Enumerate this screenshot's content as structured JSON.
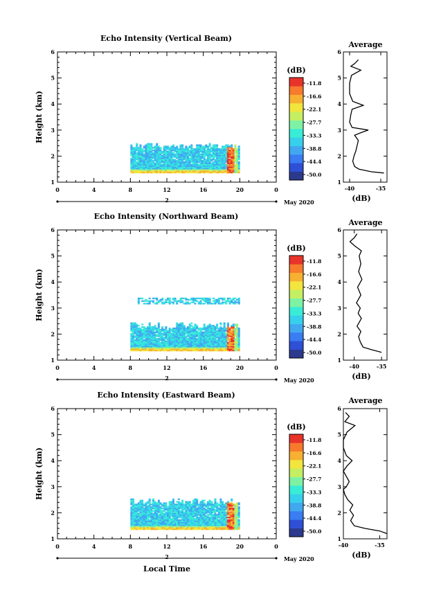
{
  "xlabel": "Local Time",
  "panels": [
    {
      "title": "Echo Intensity (Vertical Beam)",
      "ylabel": "Height (km)",
      "yticks": [
        "1",
        "2",
        "3",
        "4",
        "5",
        "6"
      ],
      "xticks": [
        "0",
        "4",
        "8",
        "12",
        "16",
        "20",
        "0"
      ],
      "day": "2",
      "month_label": "May 2020",
      "legend_unit": "(dB)",
      "legend_labels": [
        "-11.8",
        "-16.6",
        "-22.1",
        "-27.7",
        "-33.3",
        "-38.8",
        "-44.4",
        "-50.0"
      ],
      "avg_title": "Average",
      "avg_xlabel": "(dB)",
      "avg_xticks": [
        "-40",
        "-35"
      ],
      "avg_yticks": [
        "1",
        "2",
        "3",
        "4",
        "5",
        "6"
      ]
    },
    {
      "title": "Echo Intensity (Northward Beam)",
      "ylabel": "Height (km)",
      "yticks": [
        "1",
        "2",
        "3",
        "4",
        "5",
        "6"
      ],
      "xticks": [
        "0",
        "4",
        "8",
        "12",
        "16",
        "20",
        "0"
      ],
      "day": "2",
      "month_label": "May 2020",
      "legend_unit": "(dB)",
      "legend_labels": [
        "-11.8",
        "-16.6",
        "-22.1",
        "-27.7",
        "-33.3",
        "-38.8",
        "-44.4",
        "-50.0"
      ],
      "avg_title": "Average",
      "avg_xlabel": "(dB)",
      "avg_xticks": [
        "-40",
        "-35"
      ],
      "avg_yticks": [
        "1",
        "2",
        "3",
        "4",
        "5",
        "6"
      ]
    },
    {
      "title": "Echo Intensity (Eastward Beam)",
      "ylabel": "Height (km)",
      "yticks": [
        "1",
        "2",
        "3",
        "4",
        "5",
        "6"
      ],
      "xticks": [
        "0",
        "4",
        "8",
        "12",
        "16",
        "20",
        "0"
      ],
      "day": "2",
      "month_label": "May 2020",
      "legend_unit": "(dB)",
      "legend_labels": [
        "-11.8",
        "-16.6",
        "-22.1",
        "-27.7",
        "-33.3",
        "-38.8",
        "-44.4",
        "-50.0"
      ],
      "avg_title": "Average",
      "avg_xlabel": "(dB)",
      "avg_xticks": [
        "-40",
        "-35"
      ],
      "avg_yticks": [
        "1",
        "2",
        "3",
        "4",
        "5",
        "6"
      ]
    }
  ],
  "chart_data": [
    {
      "type": "heatmap",
      "title": "Echo Intensity (Vertical Beam)",
      "ylabel": "Height (km)",
      "xlim": [
        0,
        24
      ],
      "ylim": [
        1,
        6
      ],
      "data_window": {
        "time_start": 8,
        "time_end": 20,
        "height_min": 1.35,
        "height_max": 2.5
      },
      "colorscale": {
        "unit": "dB",
        "min": -50.0,
        "max": -11.8,
        "colors": [
          "#2b3a8c",
          "#2e4fd6",
          "#3a7cf2",
          "#41a8f0",
          "#37d0ec",
          "#39ecd6",
          "#7ef2a4",
          "#c4ef62",
          "#f2e53e",
          "#f7b032",
          "#f77a2d",
          "#e8332b"
        ]
      },
      "profile": {
        "heights": [
          1.35,
          1.4,
          1.5,
          1.6,
          1.8,
          2.0,
          2.2,
          2.4,
          2.6,
          2.8,
          2.9,
          3.0,
          3.1,
          3.3,
          3.6,
          3.8,
          3.95,
          4.1,
          4.4,
          4.8,
          5.1,
          5.3,
          5.45,
          5.55,
          5.7
        ],
        "values": [
          -34.5,
          -36.5,
          -38.5,
          -39.2,
          -39.5,
          -39.3,
          -39.0,
          -38.8,
          -38.6,
          -39.2,
          -38.2,
          -37.0,
          -39.6,
          -40.0,
          -39.8,
          -39.6,
          -37.8,
          -39.5,
          -40.0,
          -40.0,
          -39.7,
          -38.2,
          -39.8,
          -39.2,
          -38.6
        ],
        "xlim": [
          -41,
          -34
        ]
      }
    },
    {
      "type": "heatmap",
      "title": "Echo Intensity (Northward Beam)",
      "ylabel": "Height (km)",
      "xlim": [
        0,
        24
      ],
      "ylim": [
        1,
        6
      ],
      "data_window": {
        "time_start": 8,
        "time_end": 20,
        "height_min": 1.35,
        "height_max": 2.45,
        "upper_layer": [
          3.15,
          3.35
        ]
      },
      "colorscale": {
        "unit": "dB",
        "min": -50.0,
        "max": -11.8,
        "colors": [
          "#2b3a8c",
          "#2e4fd6",
          "#3a7cf2",
          "#41a8f0",
          "#37d0ec",
          "#39ecd6",
          "#7ef2a4",
          "#c4ef62",
          "#f2e53e",
          "#f7b032",
          "#f77a2d",
          "#e8332b"
        ]
      },
      "profile": {
        "heights": [
          1.3,
          1.4,
          1.5,
          1.7,
          1.9,
          2.1,
          2.3,
          2.6,
          2.8,
          3.0,
          3.2,
          3.5,
          3.8,
          4.1,
          4.4,
          4.7,
          5.0,
          5.2,
          5.4,
          5.55,
          5.7,
          5.85
        ],
        "values": [
          -35.0,
          -36.8,
          -38.4,
          -38.9,
          -39.2,
          -38.8,
          -39.5,
          -38.7,
          -39.3,
          -38.9,
          -39.6,
          -38.8,
          -39.4,
          -38.6,
          -39.2,
          -38.8,
          -39.1,
          -38.7,
          -40.0,
          -40.8,
          -40.0,
          -39.5
        ],
        "xlim": [
          -42,
          -34
        ]
      }
    },
    {
      "type": "heatmap",
      "title": "Echo Intensity (Eastward Beam)",
      "ylabel": "Height (km)",
      "xlim": [
        0,
        24
      ],
      "ylim": [
        1,
        6
      ],
      "data_window": {
        "time_start": 8,
        "time_end": 20,
        "height_min": 1.35,
        "height_max": 2.55
      },
      "colorscale": {
        "unit": "dB",
        "min": -50.0,
        "max": -11.8,
        "colors": [
          "#2b3a8c",
          "#2e4fd6",
          "#3a7cf2",
          "#41a8f0",
          "#37d0ec",
          "#39ecd6",
          "#7ef2a4",
          "#c4ef62",
          "#f2e53e",
          "#f7b032",
          "#f77a2d",
          "#e8332b"
        ]
      },
      "profile": {
        "heights": [
          1.2,
          1.3,
          1.4,
          1.5,
          1.7,
          1.9,
          2.1,
          2.3,
          2.5,
          2.7,
          2.9,
          3.0,
          3.2,
          3.4,
          3.6,
          3.8,
          4.0,
          4.2,
          4.5,
          4.8,
          5.1,
          5.35,
          5.5,
          5.7,
          5.85
        ],
        "values": [
          -34.0,
          -35.0,
          -37.0,
          -38.5,
          -39.0,
          -38.6,
          -39.1,
          -38.7,
          -39.4,
          -39.8,
          -40.0,
          -39.6,
          -39.2,
          -39.6,
          -40.0,
          -39.5,
          -38.8,
          -39.6,
          -40.0,
          -40.0,
          -39.5,
          -38.4,
          -39.8,
          -39.2,
          -39.7
        ],
        "xlim": [
          -40,
          -34
        ]
      }
    }
  ]
}
